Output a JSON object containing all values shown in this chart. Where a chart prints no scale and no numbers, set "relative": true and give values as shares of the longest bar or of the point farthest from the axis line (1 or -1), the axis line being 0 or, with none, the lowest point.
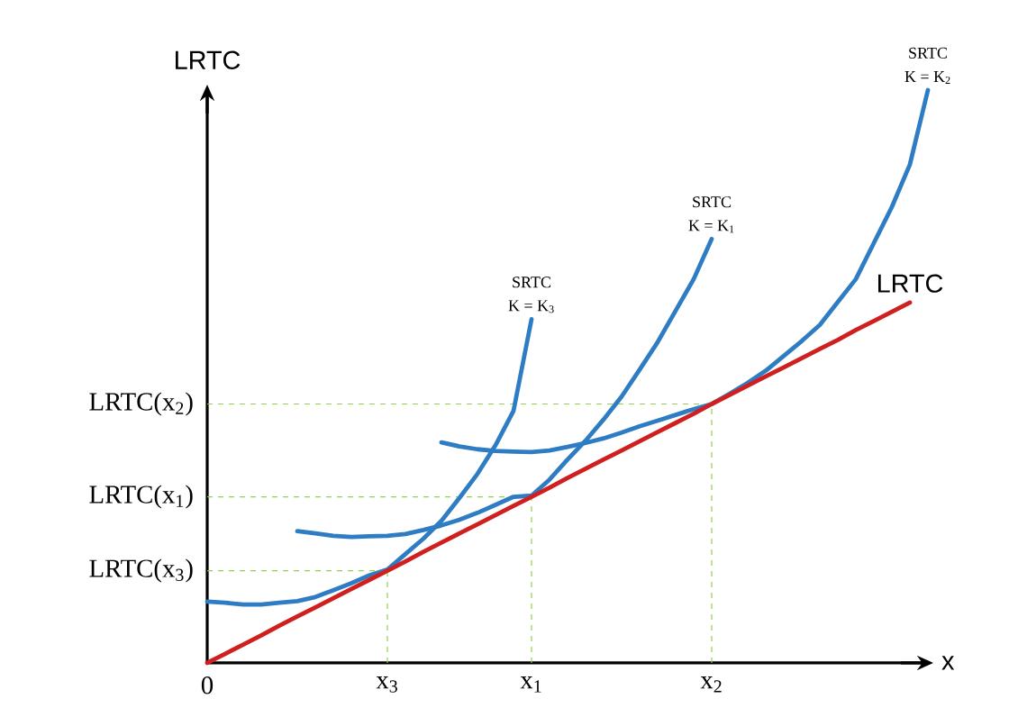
{
  "chart_data": {
    "type": "line",
    "relative": true,
    "xlabel": "x",
    "ylabel": "LRTC",
    "categories": [
      "0",
      null,
      null,
      null,
      null,
      null,
      null,
      null,
      null,
      null,
      "x$_{3}$",
      null,
      null,
      null,
      null,
      null,
      null,
      null,
      "x$_{1}$",
      null,
      null,
      null,
      null,
      null,
      null,
      null,
      null,
      null,
      "x$_{2}$",
      null,
      null,
      null,
      null,
      null,
      null,
      null,
      null,
      null,
      null,
      null,
      null
    ],
    "series": [
      {
        "name": "SRTC",
        "color": "#2e7dc4",
        "values": [
          0.107,
          0.105,
          0.102,
          0.102,
          0.105,
          0.108,
          0.115,
          0.127,
          0.139,
          0.153,
          0.163,
          0.19,
          0.217,
          0.248,
          0.288,
          0.33,
          0.38,
          0.44,
          0.6,
          null,
          null,
          null,
          null,
          null,
          null,
          null,
          null,
          null,
          null,
          null,
          null,
          null,
          null,
          null,
          null,
          null,
          null,
          null,
          null,
          null,
          null
        ]
      },
      {
        "name": "SRTC",
        "color": "#2e7dc4",
        "values": [
          null,
          null,
          null,
          null,
          null,
          0.23,
          0.226,
          0.222,
          0.22,
          0.221,
          0.222,
          0.225,
          0.232,
          0.24,
          0.25,
          0.262,
          0.276,
          0.29,
          0.292,
          0.32,
          0.355,
          0.388,
          0.425,
          0.465,
          0.512,
          0.56,
          0.615,
          0.67,
          0.74,
          null,
          null,
          null,
          null,
          null,
          null,
          null,
          null,
          null,
          null,
          null,
          null
        ]
      },
      {
        "name": "SRTC",
        "color": "#2e7dc4",
        "values": [
          null,
          null,
          null,
          null,
          null,
          null,
          null,
          null,
          null,
          null,
          null,
          null,
          null,
          0.385,
          0.378,
          0.373,
          0.37,
          0.369,
          0.368,
          0.371,
          0.377,
          0.384,
          0.392,
          0.402,
          0.413,
          0.423,
          0.433,
          0.443,
          0.452,
          0.47,
          0.489,
          0.51,
          0.536,
          0.562,
          0.59,
          0.63,
          0.67,
          0.733,
          0.796,
          0.87,
          1.0
        ]
      },
      {
        "name": "LRTC",
        "color": "#d01f1f",
        "values": [
          0,
          0.016,
          0.032,
          0.048,
          0.065,
          0.081,
          0.097,
          0.113,
          0.129,
          0.145,
          0.161,
          0.177,
          0.194,
          0.21,
          0.226,
          0.242,
          0.258,
          0.274,
          0.29,
          0.306,
          0.323,
          0.339,
          0.355,
          0.371,
          0.387,
          0.403,
          0.419,
          0.435,
          0.452,
          0.468,
          0.484,
          0.5,
          0.516,
          0.532,
          0.548,
          0.564,
          0.581,
          0.597,
          0.613,
          0.629,
          null
        ]
      }
    ],
    "ref_lines": [
      {
        "axis": "y",
        "value": 0.161,
        "label": "LRTC(x$_{3}$)",
        "color": "#92d050",
        "line_style": "dashed"
      },
      {
        "axis": "y",
        "value": 0.29,
        "label": "LRTC(x$_{1}$)",
        "color": "#92d050",
        "line_style": "dashed"
      },
      {
        "axis": "y",
        "value": 0.452,
        "label": "LRTC(x$_{2}$)",
        "color": "#92d050",
        "line_style": "dashed"
      },
      {
        "axis": "x",
        "value": "x$_{3}$",
        "color": "#92d050",
        "line_style": "dashed"
      },
      {
        "axis": "x",
        "value": "x$_{1}$",
        "color": "#92d050",
        "line_style": "dashed"
      },
      {
        "axis": "x",
        "value": "x$_{2}$",
        "color": "#92d050",
        "line_style": "dashed"
      }
    ],
    "annotations": [
      "K = K$_{3}$",
      "K = K$_{1}$",
      "K = K$_{2}$"
    ]
  }
}
